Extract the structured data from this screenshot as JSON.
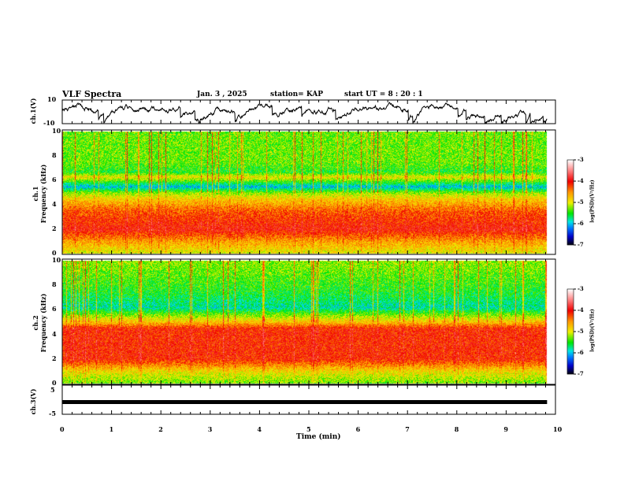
{
  "header": {
    "title": "VLF Spectra",
    "date": "Jan. 3 , 2025",
    "station": "station= KAP",
    "start": "start  UT =  8 : 20 : 1"
  },
  "chart_data": [
    {
      "type": "line",
      "name": "ch1",
      "ylabel": "ch.1(V)",
      "ylim": [
        -10,
        10
      ],
      "yticks": [
        "10",
        "-10"
      ],
      "xlim": [
        0,
        10
      ],
      "level_mean": 3,
      "level_range": [
        -9,
        9
      ]
    },
    {
      "type": "heatmap",
      "name": "ch1-spectrogram",
      "ylabel": "ch.1\nFrequency (kHz)",
      "ylabel_lines": [
        "ch.1",
        "Frequency (kHz)"
      ],
      "ylim": [
        0,
        10
      ],
      "yticks": [
        "0",
        "2",
        "4",
        "6",
        "8",
        "10"
      ],
      "xlim": [
        0,
        9.83
      ],
      "profile_khz": [
        0,
        0.5,
        1,
        2,
        3.5,
        4.5,
        5,
        5.5,
        6.3,
        6.7,
        7.5,
        10
      ],
      "profile_logpsd": [
        -5.0,
        -4.8,
        -4.6,
        -4.0,
        -4.3,
        -4.8,
        -5.2,
        -6.0,
        -4.9,
        -5.5,
        -5.3,
        -5.3
      ]
    },
    {
      "type": "heatmap",
      "name": "ch2-spectrogram",
      "ylabel_lines": [
        "ch.2",
        "Frequency (kHz)"
      ],
      "ylim": [
        0,
        10
      ],
      "yticks": [
        "0",
        "2",
        "4",
        "6",
        "8",
        "10"
      ],
      "xlim": [
        0,
        9.83
      ],
      "profile_khz": [
        0,
        1,
        2,
        4.5,
        5,
        6.2,
        7.5,
        10
      ],
      "profile_logpsd": [
        -5.3,
        -4.9,
        -4.1,
        -4.1,
        -4.7,
        -5.8,
        -5.5,
        -5.2
      ]
    },
    {
      "type": "line",
      "name": "ch3",
      "ylabel": "ch.3(V)",
      "ylim": [
        -5,
        5
      ],
      "yticks": [
        "5",
        "-5"
      ],
      "xlim": [
        0,
        9.83
      ],
      "value": 0
    }
  ],
  "xaxis": {
    "label": "Time (min)",
    "ticks": [
      "0",
      "1",
      "2",
      "3",
      "4",
      "5",
      "6",
      "7",
      "8",
      "9",
      "10"
    ],
    "range": [
      0,
      10
    ]
  },
  "colorbar": {
    "label": "log(PSD)(V²/Hz)",
    "ticks": [
      "-3",
      "-4",
      "-5",
      "-6",
      "-7"
    ],
    "range": [
      -7,
      -3
    ]
  }
}
